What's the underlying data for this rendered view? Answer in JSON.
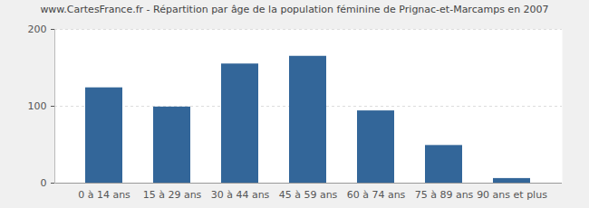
{
  "chart_data": {
    "type": "bar",
    "title": "www.CartesFrance.fr - Répartition par âge de la population féminine de Prignac-et-Marcamps en 2007",
    "categories": [
      "0 à 14 ans",
      "15 à 29 ans",
      "30 à 44 ans",
      "45 à 59 ans",
      "60 à 74 ans",
      "75 à 89 ans",
      "90 ans et plus"
    ],
    "values": [
      124,
      99,
      155,
      165,
      94,
      49,
      6
    ],
    "color": "#336699",
    "ylim": [
      0,
      200
    ],
    "yticks": [
      0,
      100,
      200
    ],
    "grid": true
  }
}
